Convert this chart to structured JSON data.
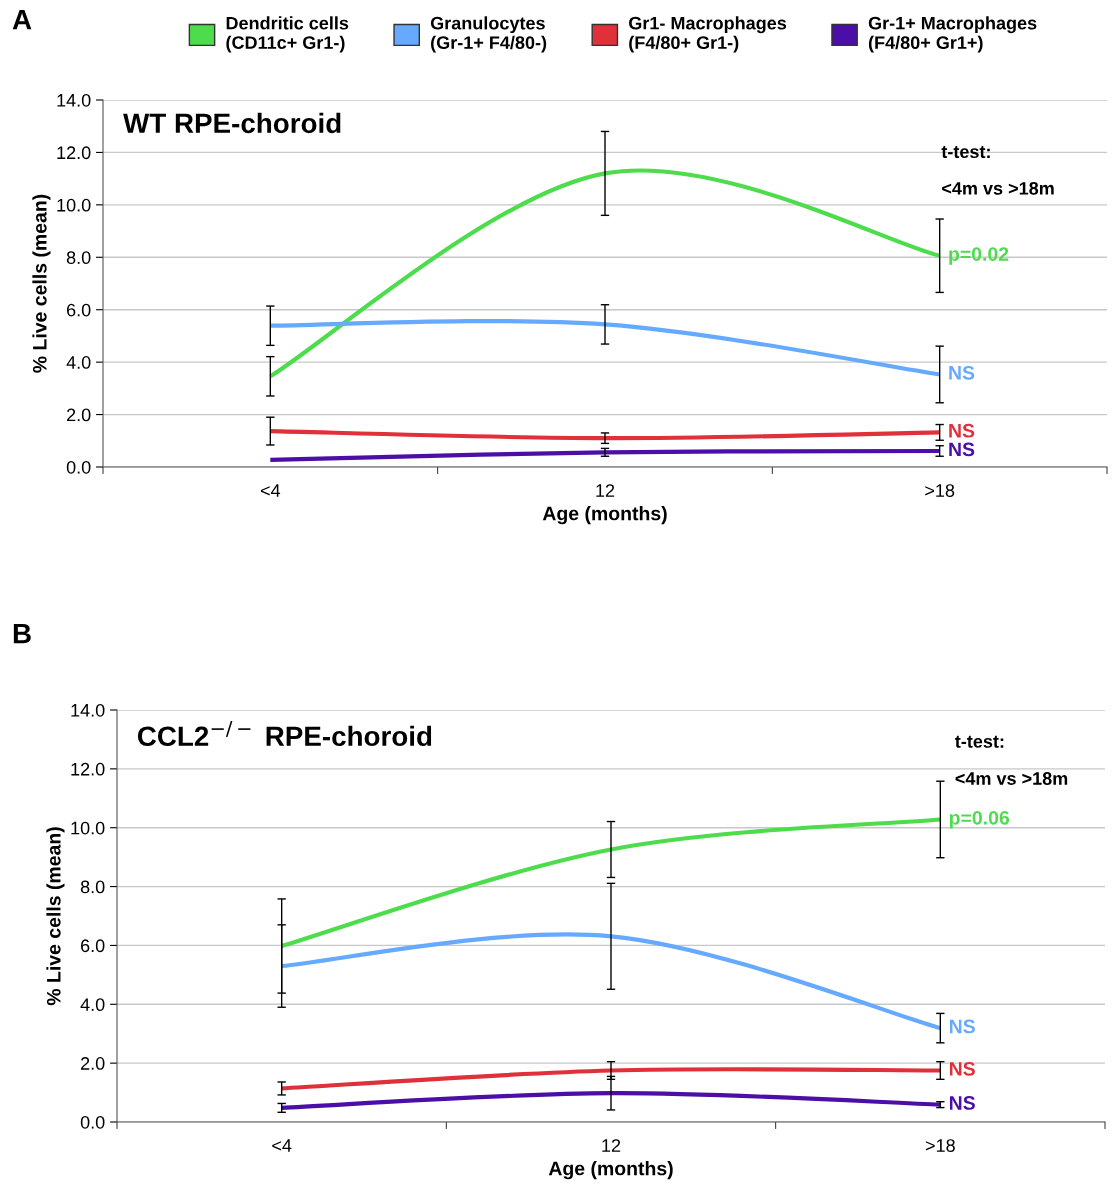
{
  "chart_data": [
    {
      "type": "line",
      "title": "WT RPE-choroid",
      "xlabel": "Age (months)",
      "ylabel": "% Live cells (mean)",
      "categories": [
        "<4",
        "12",
        ">18"
      ],
      "ylim": [
        0,
        14
      ],
      "yticks": [
        {
          "value": 0,
          "label": "0.0"
        },
        {
          "value": 2,
          "label": "2.0"
        },
        {
          "value": 4,
          "label": "4.0"
        },
        {
          "value": 6,
          "label": "6.0"
        },
        {
          "value": 8,
          "label": "8.0"
        },
        {
          "value": 10,
          "label": "10.0"
        },
        {
          "value": 12,
          "label": "12.0"
        },
        {
          "value": 14,
          "label": "14.0"
        }
      ],
      "grid": "y",
      "legend": "top",
      "marker": "none",
      "line_style": "solid",
      "series": [
        {
          "name": "Dendritic cells\n(CD11c+ Gr1-)",
          "color": "#4cdc4c",
          "values": [
            3.46,
            11.2,
            8.06
          ],
          "errors": [
            0.75,
            1.6,
            1.4
          ]
        },
        {
          "name": "Granulocytes\n(Gr-1+ F4/80-)",
          "color": "#66aaff",
          "values": [
            5.39,
            5.44,
            3.53
          ],
          "errors": [
            0.75,
            0.75,
            1.08
          ]
        },
        {
          "name": "Gr1- Macrophages\n(F4/80+ Gr1-)",
          "color": "#e0303a",
          "values": [
            1.37,
            1.1,
            1.32
          ],
          "errors": [
            0.53,
            0.2,
            0.3
          ]
        },
        {
          "name": "Gr-1+ Macrophages\n(F4/80+ Gr1+)",
          "color": "#4b0fa8",
          "values": [
            0.27,
            0.56,
            0.61
          ],
          "errors": [
            null,
            0.15,
            0.2
          ]
        }
      ],
      "annotations": [
        "A",
        "t-test:",
        "<4m vs >18m",
        {
          "text": "p=0.02",
          "x": ">18",
          "y": 8.06
        },
        {
          "text": "NS",
          "x": ">18",
          "y": 3.53
        },
        {
          "text": "NS",
          "x": ">18",
          "y": 1.32
        },
        {
          "text": "NS",
          "x": ">18",
          "y": 0.61
        }
      ]
    },
    {
      "type": "line",
      "title": "CCL2$^{−/−}$ RPE-choroid",
      "xlabel": "Age (months)",
      "ylabel": "% Live cells (mean)",
      "categories": [
        "<4",
        "12",
        ">18"
      ],
      "ylim": [
        0,
        14
      ],
      "yticks": [
        {
          "value": 0,
          "label": "0.0"
        },
        {
          "value": 2,
          "label": "2.0"
        },
        {
          "value": 4,
          "label": "4.0"
        },
        {
          "value": 6,
          "label": "6.0"
        },
        {
          "value": 8,
          "label": "8.0"
        },
        {
          "value": 10,
          "label": "10.0"
        },
        {
          "value": 12,
          "label": "12.0"
        },
        {
          "value": 14,
          "label": "14.0"
        }
      ],
      "grid": "y",
      "marker": "none",
      "line_style": "solid",
      "series": [
        {
          "color": "#4cdc4c",
          "values": [
            5.98,
            9.26,
            10.28
          ],
          "errors": [
            1.6,
            0.95,
            1.3
          ]
        },
        {
          "color": "#66aaff",
          "values": [
            5.3,
            6.31,
            3.19
          ],
          "errors": [
            1.4,
            1.8,
            0.5
          ]
        },
        {
          "color": "#e0303a",
          "values": [
            1.14,
            1.75,
            1.75
          ],
          "errors": [
            0.22,
            0.3,
            0.3
          ]
        },
        {
          "color": "#4b0fa8",
          "values": [
            0.48,
            0.98,
            0.59
          ],
          "errors": [
            0.15,
            0.57,
            0.1
          ]
        }
      ],
      "annotations": [
        "B",
        "t-test:",
        "<4m vs >18m",
        {
          "text": "p=0.06",
          "x": ">18",
          "y": 10.28
        },
        {
          "text": "NS",
          "x": ">18",
          "y": 3.19
        },
        {
          "text": "NS",
          "x": ">18",
          "y": 1.75
        },
        {
          "text": "NS",
          "x": ">18",
          "y": 0.59
        }
      ]
    }
  ]
}
